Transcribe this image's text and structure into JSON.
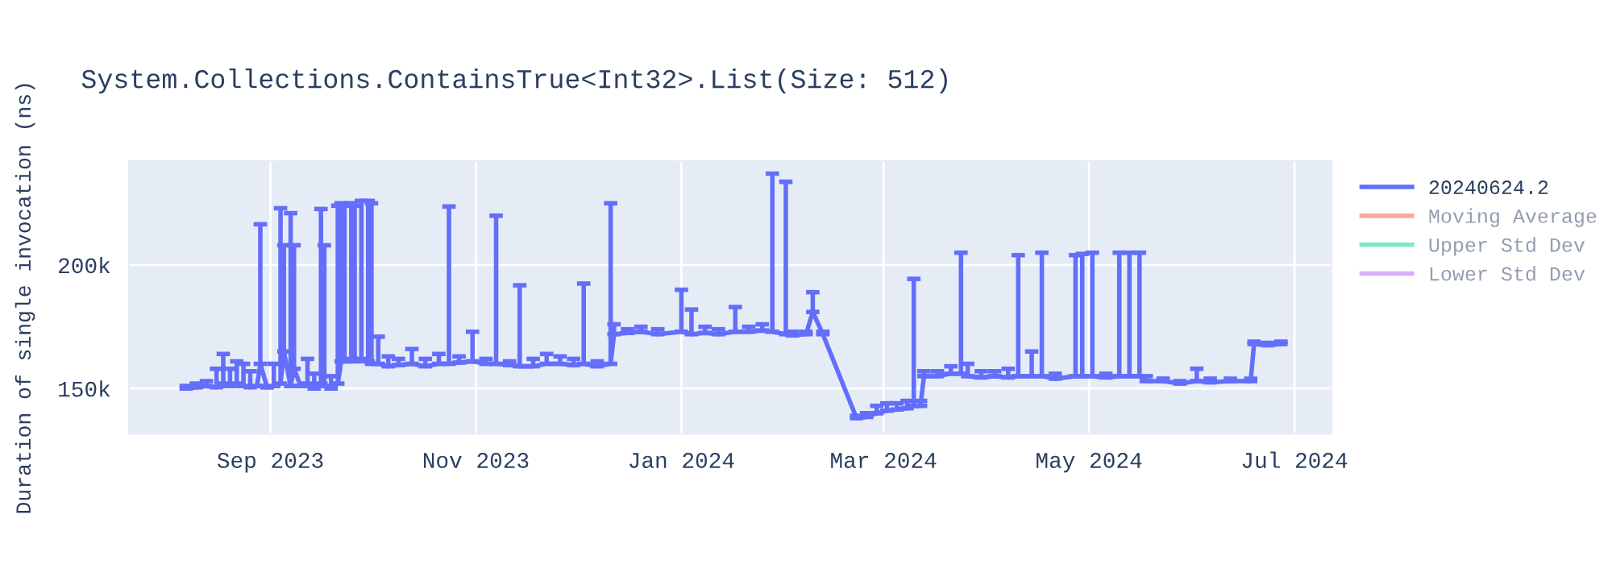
{
  "chart_data": {
    "type": "line",
    "title": "System.Collections.ContainsTrue<Int32>.List(Size: 512)",
    "ylabel": "Duration of single invocation (ns)",
    "x": [
      "2023-08-07",
      "2023-08-10",
      "2023-08-13",
      "2023-08-16",
      "2023-08-18",
      "2023-08-20",
      "2023-08-22",
      "2023-08-24",
      "2023-08-26",
      "2023-08-28",
      "2023-08-29",
      "2023-08-31",
      "2023-09-02",
      "2023-09-04",
      "2023-09-05",
      "2023-09-07",
      "2023-09-08",
      "2023-09-10",
      "2023-09-12",
      "2023-09-14",
      "2023-09-16",
      "2023-09-17",
      "2023-09-19",
      "2023-09-21",
      "2023-09-22",
      "2023-09-23",
      "2023-09-25",
      "2023-09-26",
      "2023-09-28",
      "2023-09-30",
      "2023-10-01",
      "2023-10-03",
      "2023-10-06",
      "2023-10-09",
      "2023-10-13",
      "2023-10-17",
      "2023-10-21",
      "2023-10-24",
      "2023-10-27",
      "2023-10-31",
      "2023-11-04",
      "2023-11-07",
      "2023-11-11",
      "2023-11-14",
      "2023-11-18",
      "2023-11-22",
      "2023-11-26",
      "2023-11-30",
      "2023-12-03",
      "2023-12-07",
      "2023-12-11",
      "2023-12-12",
      "2023-12-16",
      "2023-12-20",
      "2023-12-25",
      "2024-01-01",
      "2024-01-04",
      "2024-01-08",
      "2024-01-12",
      "2024-01-17",
      "2024-01-21",
      "2024-01-25",
      "2024-01-28",
      "2024-02-01",
      "2024-02-03",
      "2024-02-07",
      "2024-02-09",
      "2024-02-12",
      "2024-02-22",
      "2024-02-25",
      "2024-02-28",
      "2024-03-02",
      "2024-03-05",
      "2024-03-08",
      "2024-03-10",
      "2024-03-12",
      "2024-03-13",
      "2024-03-17",
      "2024-03-21",
      "2024-03-24",
      "2024-03-26",
      "2024-03-30",
      "2024-04-03",
      "2024-04-07",
      "2024-04-10",
      "2024-04-14",
      "2024-04-17",
      "2024-04-21",
      "2024-04-27",
      "2024-04-29",
      "2024-05-02",
      "2024-05-06",
      "2024-05-10",
      "2024-05-13",
      "2024-05-16",
      "2024-05-18",
      "2024-05-23",
      "2024-05-28",
      "2024-06-02",
      "2024-06-06",
      "2024-06-12",
      "2024-06-18",
      "2024-06-19",
      "2024-06-23",
      "2024-06-27"
    ],
    "series": [
      {
        "name": "20240624.2",
        "color": "#636efa",
        "values": [
          150000,
          150500,
          151000,
          150500,
          152000,
          151000,
          152000,
          151000,
          150500,
          151000,
          160000,
          150500,
          151000,
          152000,
          165000,
          151000,
          158000,
          151000,
          152000,
          150000,
          152000,
          151000,
          150000,
          152000,
          161000,
          161000,
          162000,
          161000,
          162000,
          161000,
          160000,
          160000,
          159000,
          159500,
          160000,
          159000,
          160000,
          160000,
          160500,
          161000,
          160000,
          160000,
          159500,
          159000,
          159000,
          160000,
          160000,
          159500,
          160000,
          159000,
          160000,
          172000,
          172500,
          173000,
          172000,
          173000,
          172000,
          172500,
          172000,
          173000,
          173000,
          173500,
          173000,
          172000,
          171500,
          172000,
          181000,
          172000,
          138000,
          138500,
          140000,
          141000,
          141500,
          142000,
          143000,
          143000,
          155000,
          155000,
          156000,
          156000,
          155000,
          154500,
          155000,
          154500,
          155000,
          155000,
          155000,
          154000,
          155000,
          155000,
          155000,
          154500,
          155000,
          155000,
          155000,
          153000,
          153000,
          152000,
          153000,
          152500,
          153000,
          153000,
          168000,
          167500,
          168000
        ],
        "errors": [
          [
            150000,
            151000
          ],
          [
            150500,
            152000
          ],
          [
            151000,
            153000
          ],
          [
            150500,
            158000
          ],
          [
            152000,
            164000
          ],
          [
            151000,
            158000
          ],
          [
            152000,
            161000
          ],
          [
            151000,
            160000
          ],
          [
            150500,
            157000
          ],
          null,
          [
            160000,
            216500
          ],
          null,
          [
            151000,
            160000
          ],
          [
            152000,
            223000
          ],
          [
            165000,
            208000
          ],
          [
            151000,
            221000
          ],
          [
            158000,
            208000
          ],
          null,
          [
            152000,
            162000
          ],
          [
            150000,
            156000
          ],
          [
            152000,
            222700
          ],
          [
            151000,
            208000
          ],
          [
            150000,
            155000
          ],
          [
            152000,
            224000
          ],
          [
            161000,
            225000
          ],
          [
            161000,
            224000
          ],
          [
            162000,
            225000
          ],
          [
            161000,
            224000
          ],
          [
            162000,
            226000
          ],
          [
            161000,
            226000
          ],
          [
            160000,
            225000
          ],
          [
            160000,
            171000
          ],
          [
            159000,
            163000
          ],
          [
            159500,
            162000
          ],
          [
            160000,
            166000
          ],
          [
            159000,
            162000
          ],
          [
            160000,
            164000
          ],
          [
            160000,
            223700
          ],
          [
            160500,
            163000
          ],
          [
            161000,
            173000
          ],
          [
            160000,
            162000
          ],
          [
            160000,
            220000
          ],
          [
            159500,
            161000
          ],
          [
            159000,
            191800
          ],
          [
            159000,
            162000
          ],
          [
            160000,
            164000
          ],
          [
            160000,
            163000
          ],
          [
            159500,
            162000
          ],
          [
            160000,
            192500
          ],
          [
            159000,
            161000
          ],
          [
            160000,
            225000
          ],
          [
            172000,
            176000
          ],
          [
            172500,
            174000
          ],
          [
            173000,
            175000
          ],
          [
            172000,
            174000
          ],
          [
            173000,
            190000
          ],
          [
            172000,
            182000
          ],
          [
            172500,
            175000
          ],
          [
            172000,
            174000
          ],
          [
            173000,
            183000
          ],
          [
            173000,
            175000
          ],
          [
            173500,
            176000
          ],
          [
            173000,
            237000
          ],
          [
            172000,
            233700
          ],
          [
            171500,
            173000
          ],
          [
            172000,
            173000
          ],
          [
            181000,
            189000
          ],
          [
            172000,
            173000
          ],
          [
            138000,
            139000
          ],
          [
            138500,
            140000
          ],
          [
            140000,
            143000
          ],
          [
            141000,
            144000
          ],
          [
            141500,
            144000
          ],
          [
            142000,
            145000
          ],
          [
            143000,
            194400
          ],
          [
            143000,
            145000
          ],
          [
            155000,
            157000
          ],
          [
            155000,
            157000
          ],
          [
            156000,
            159000
          ],
          [
            156000,
            205000
          ],
          [
            155000,
            160000
          ],
          [
            154500,
            157000
          ],
          [
            155000,
            157000
          ],
          [
            154500,
            158000
          ],
          [
            155000,
            204000
          ],
          [
            155000,
            165000
          ],
          [
            155000,
            205000
          ],
          [
            154000,
            156000
          ],
          [
            155000,
            204000
          ],
          [
            155000,
            204500
          ],
          [
            155000,
            205000
          ],
          [
            154500,
            156000
          ],
          [
            155000,
            205000
          ],
          [
            155000,
            205000
          ],
          [
            155000,
            205000
          ],
          [
            153000,
            155000
          ],
          [
            153000,
            154000
          ],
          [
            152000,
            153000
          ],
          [
            153000,
            158000
          ],
          [
            152500,
            154000
          ],
          [
            153000,
            154000
          ],
          [
            153000,
            154000
          ],
          [
            168000,
            169000
          ],
          [
            167500,
            168500
          ],
          [
            168000,
            169000
          ]
        ]
      },
      {
        "name": "Moving Average",
        "color": "#ef553b",
        "values": [
          null,
          null,
          null,
          null,
          null,
          null,
          null,
          null,
          null,
          null,
          null,
          null,
          null,
          null,
          null,
          null,
          null,
          null,
          null,
          null,
          null,
          null,
          null,
          null,
          null,
          null,
          null,
          null,
          null,
          null,
          null,
          null,
          null,
          null,
          null,
          null,
          null,
          null,
          null,
          null,
          null,
          null,
          null,
          null,
          null,
          null,
          null,
          null,
          null,
          null,
          null,
          null,
          null,
          null,
          null,
          null,
          null,
          null,
          null,
          null,
          null,
          null,
          null,
          null,
          null,
          null,
          null,
          null,
          null,
          null,
          null,
          null,
          null,
          null,
          null,
          null,
          null,
          null,
          null,
          null,
          null,
          null,
          null,
          null,
          null,
          null,
          null,
          null,
          null,
          null,
          null,
          null,
          null,
          null,
          null,
          null,
          null,
          null,
          null,
          null,
          null,
          null,
          null,
          null,
          null
        ]
      },
      {
        "name": "Upper Std Dev",
        "color": "#00cc96",
        "values": [
          null,
          null,
          null,
          null,
          null,
          null,
          null,
          null,
          null,
          null,
          null,
          null,
          null,
          null,
          null,
          null,
          null,
          null,
          null,
          null,
          null,
          null,
          null,
          null,
          null,
          null,
          null,
          null,
          null,
          null,
          null,
          null,
          null,
          null,
          null,
          null,
          null,
          null,
          null,
          null,
          null,
          null,
          null,
          null,
          null,
          null,
          null,
          null,
          null,
          null,
          null,
          null,
          null,
          null,
          null,
          null,
          null,
          null,
          null,
          null,
          null,
          null,
          null,
          null,
          null,
          null,
          null,
          null,
          null,
          null,
          null,
          null,
          null,
          null,
          null,
          null,
          null,
          null,
          null,
          null,
          null,
          null,
          null,
          null,
          null,
          null,
          null,
          null,
          null,
          null,
          null,
          null,
          null,
          null,
          null,
          null,
          null,
          null,
          null,
          null,
          null,
          null,
          null,
          null,
          null
        ]
      },
      {
        "name": "Lower Std Dev",
        "color": "#ab63fa",
        "values": [
          null,
          null,
          null,
          null,
          null,
          null,
          null,
          null,
          null,
          null,
          null,
          null,
          null,
          null,
          null,
          null,
          null,
          null,
          null,
          null,
          null,
          null,
          null,
          null,
          null,
          null,
          null,
          null,
          null,
          null,
          null,
          null,
          null,
          null,
          null,
          null,
          null,
          null,
          null,
          null,
          null,
          null,
          null,
          null,
          null,
          null,
          null,
          null,
          null,
          null,
          null,
          null,
          null,
          null,
          null,
          null,
          null,
          null,
          null,
          null,
          null,
          null,
          null,
          null,
          null,
          null,
          null,
          null,
          null,
          null,
          null,
          null,
          null,
          null,
          null,
          null,
          null,
          null,
          null,
          null,
          null,
          null,
          null,
          null,
          null,
          null,
          null,
          null,
          null,
          null,
          null,
          null,
          null,
          null,
          null,
          null,
          null,
          null,
          null,
          null,
          null,
          null,
          null,
          null,
          null
        ]
      }
    ],
    "xlim": [
      "2023-07-21",
      "2024-07-12"
    ],
    "xticks": [
      {
        "value": "2023-09-01",
        "label": "Sep 2023"
      },
      {
        "value": "2023-11-01",
        "label": "Nov 2023"
      },
      {
        "value": "2024-01-01",
        "label": "Jan 2024"
      },
      {
        "value": "2024-03-01",
        "label": "Mar 2024"
      },
      {
        "value": "2024-05-01",
        "label": "May 2024"
      },
      {
        "value": "2024-07-01",
        "label": "Jul 2024"
      }
    ],
    "ylim": [
      131700,
      242000
    ],
    "yticks": [
      {
        "value": 150000,
        "label": "150k"
      },
      {
        "value": 200000,
        "label": "200k"
      }
    ],
    "grid": true,
    "legend": "top right",
    "marker": "none",
    "line_style": "solid"
  }
}
